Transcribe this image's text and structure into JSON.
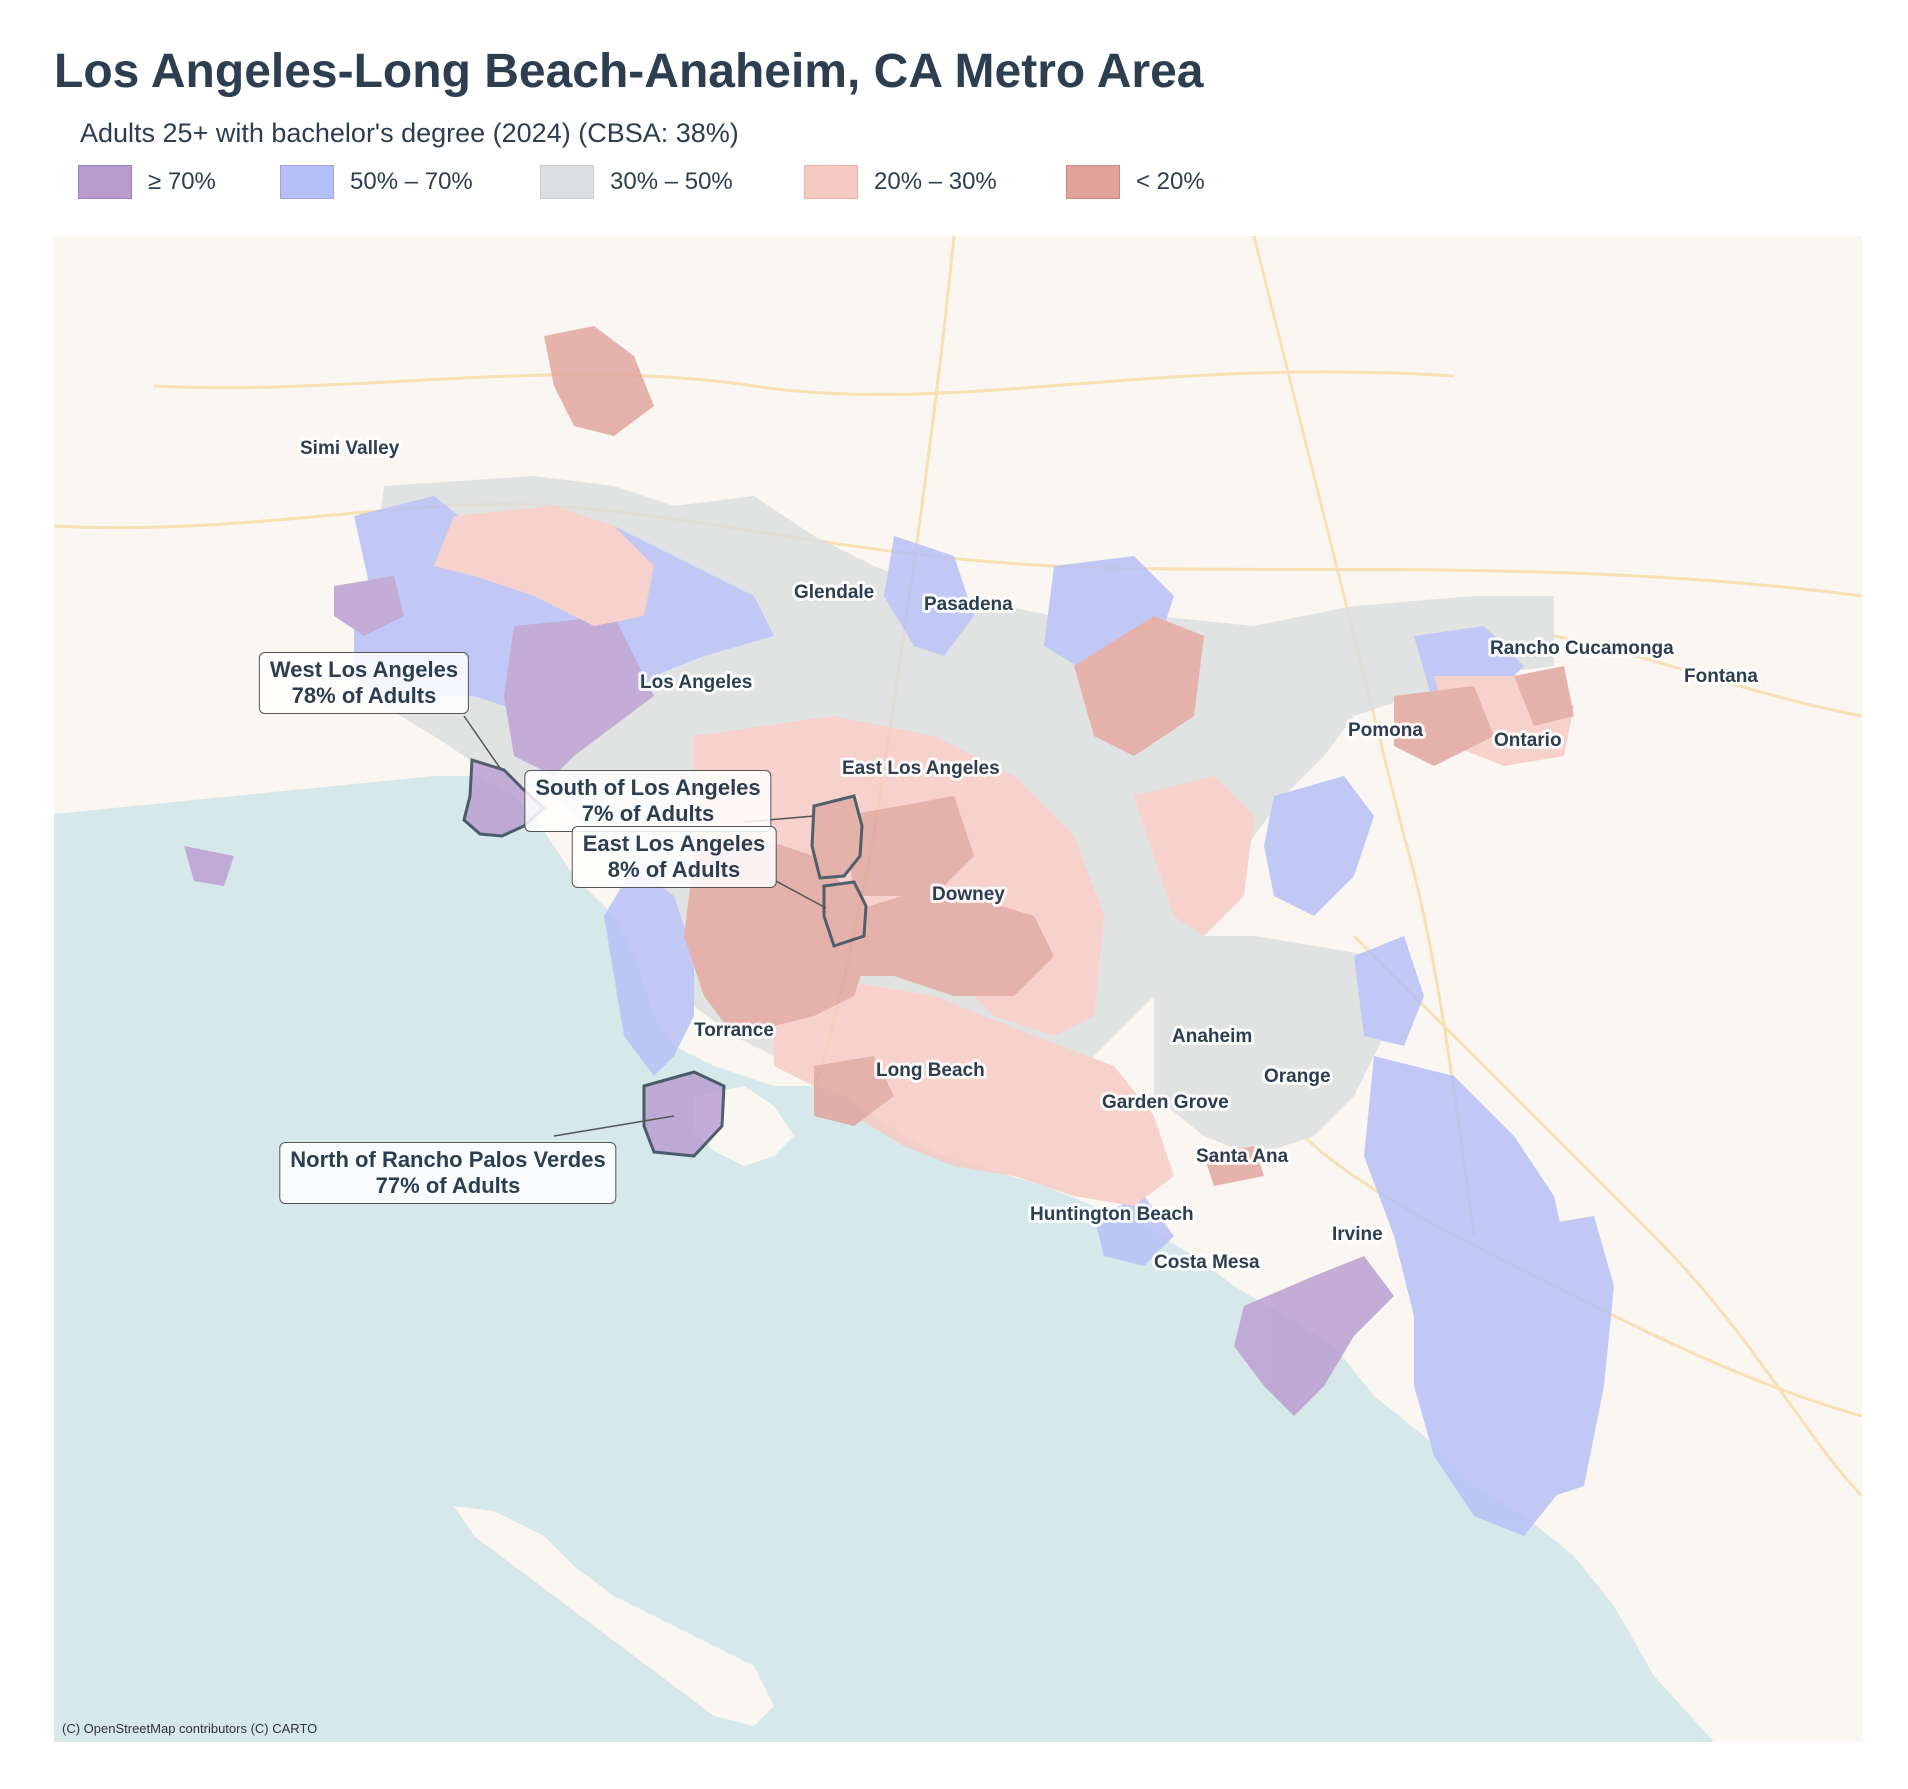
{
  "title": "Los Angeles-Long Beach-Anaheim, CA Metro Area",
  "subtitle": "Adults 25+ with bachelor's degree (2024)  (CBSA: 38%)",
  "legend": [
    {
      "label": "≥ 70%",
      "fill": "#b89ccf",
      "stroke": "#a07cc0"
    },
    {
      "label": "50% – 70%",
      "fill": "#b5bff7",
      "stroke": "#9aa7f0"
    },
    {
      "label": "30% – 50%",
      "fill": "#dcdedf",
      "stroke": "#c9cccd"
    },
    {
      "label": "20% – 30%",
      "fill": "#f7c9c3",
      "stroke": "#f0aea5"
    },
    {
      "label": "< 20%",
      "fill": "#e0a39c",
      "stroke": "#d2857c"
    }
  ],
  "cities": [
    {
      "name": "Simi Valley"
    },
    {
      "name": "Glendale"
    },
    {
      "name": "Pasadena"
    },
    {
      "name": "Los Angeles"
    },
    {
      "name": "Rancho Cucamonga"
    },
    {
      "name": "Fontana"
    },
    {
      "name": "Pomona"
    },
    {
      "name": "Ontario"
    },
    {
      "name": "East Los Angeles"
    },
    {
      "name": "Downey"
    },
    {
      "name": "Torrance"
    },
    {
      "name": "Anaheim"
    },
    {
      "name": "Long Beach"
    },
    {
      "name": "Orange"
    },
    {
      "name": "Garden Grove"
    },
    {
      "name": "Santa Ana"
    },
    {
      "name": "Huntington Beach"
    },
    {
      "name": "Irvine"
    },
    {
      "name": "Costa Mesa"
    }
  ],
  "callouts": [
    {
      "name": "West Los Angeles",
      "value": "78% of Adults"
    },
    {
      "name": "South of Los Angeles",
      "value": "7% of Adults"
    },
    {
      "name": "East Los Angeles",
      "value": "8% of Adults"
    },
    {
      "name": "North of Rancho Palos Verdes",
      "value": "77% of Adults"
    }
  ],
  "attribution": "(C) OpenStreetMap contributors (C) CARTO"
}
